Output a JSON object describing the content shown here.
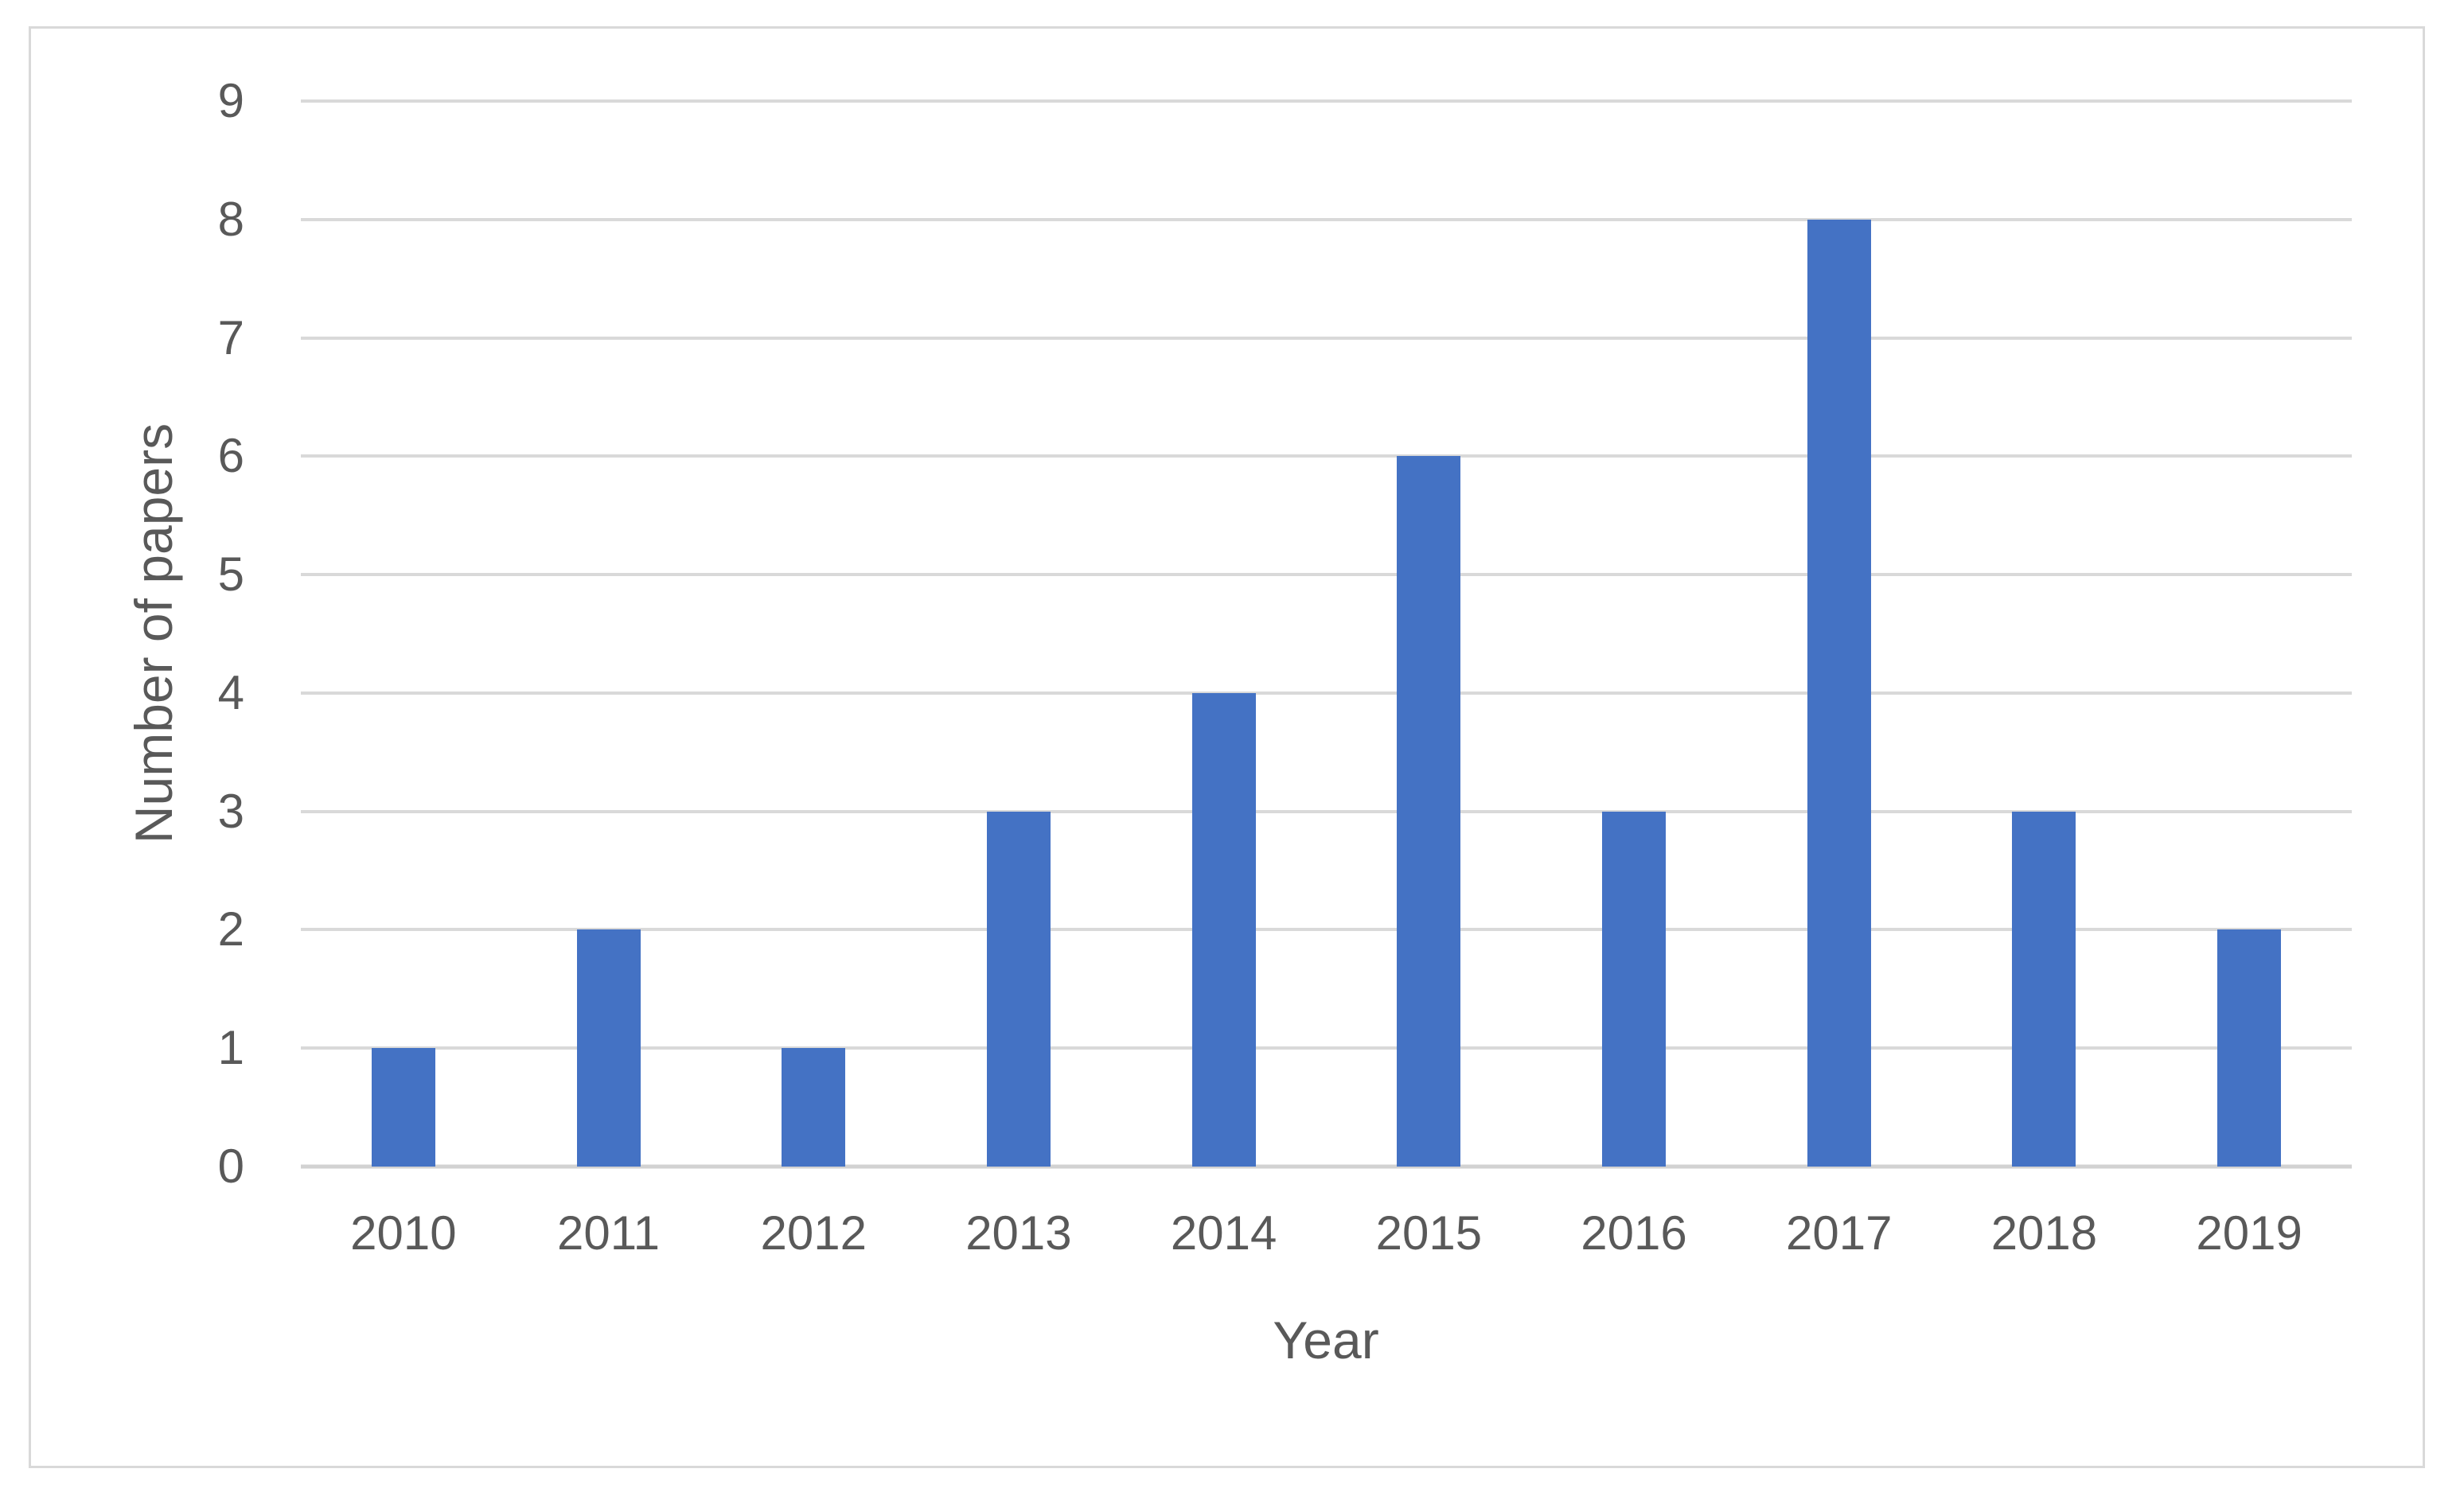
{
  "chart_data": {
    "type": "bar",
    "title": "",
    "categories": [
      "2010",
      "2011",
      "2012",
      "2013",
      "2014",
      "2015",
      "2016",
      "2017",
      "2018",
      "2019"
    ],
    "values": [
      1,
      2,
      1,
      3,
      4,
      6,
      3,
      8,
      3,
      2
    ],
    "xlabel": "Year",
    "ylabel": "Number of papers",
    "ylim": [
      0,
      9
    ],
    "yticks": [
      0,
      1,
      2,
      3,
      4,
      5,
      6,
      7,
      8,
      9
    ],
    "grid": "horizontal",
    "legend": "none",
    "colors": {
      "bar": "#4472c4",
      "gridline": "#d9d9d9",
      "axis_line": "#d2d2d2",
      "text": "#595959",
      "figure_border": "#d9d9d9",
      "background": "#ffffff"
    }
  }
}
